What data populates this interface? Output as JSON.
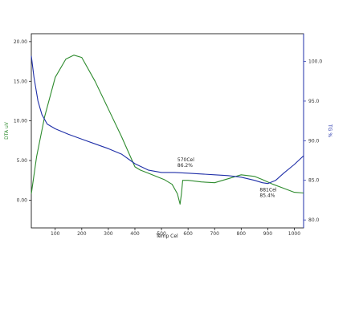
{
  "chart_data": {
    "type": "line",
    "xlabel": "Temp Cel",
    "ylabel_left": "DTA uV",
    "ylabel_right": "TG %",
    "xlim": [
      10,
      1035
    ],
    "ylim_left": [
      -3.5,
      21.0
    ],
    "ylim_right": [
      79.0,
      103.5
    ],
    "x_ticks": [
      100,
      200,
      300,
      400,
      500,
      600,
      700,
      800,
      900,
      1000
    ],
    "y_left_ticks": [
      0.0,
      5.0,
      10.0,
      15.0,
      20.0
    ],
    "y_left_tick_labels": [
      "0.00",
      "5.00",
      "10.00",
      "15.00",
      "20.00"
    ],
    "y_right_ticks": [
      80.0,
      85.0,
      90.0,
      95.0,
      100.0
    ],
    "y_right_tick_labels": [
      "80.0",
      "85.0",
      "90.0",
      "95.0",
      "100.0"
    ],
    "grid": false,
    "series": [
      {
        "axis": "left",
        "color": "#2e8b2e",
        "x": [
          10,
          30,
          60,
          100,
          140,
          170,
          200,
          250,
          300,
          350,
          400,
          420,
          450,
          480,
          510,
          540,
          560,
          570,
          575,
          580,
          600,
          650,
          700,
          750,
          800,
          850,
          880,
          920,
          960,
          1000,
          1035
        ],
        "y": [
          0.8,
          5.5,
          10.5,
          15.5,
          17.8,
          18.3,
          18.0,
          15.0,
          11.5,
          8.0,
          4.2,
          3.8,
          3.4,
          3.0,
          2.6,
          2.0,
          0.8,
          -0.5,
          0.8,
          2.5,
          2.5,
          2.3,
          2.2,
          2.7,
          3.2,
          3.0,
          2.6,
          2.0,
          1.5,
          1.0,
          0.9
        ]
      },
      {
        "axis": "right",
        "color": "#1f2fa8",
        "x": [
          10,
          20,
          35,
          50,
          70,
          100,
          150,
          200,
          250,
          300,
          350,
          400,
          450,
          500,
          550,
          600,
          650,
          700,
          750,
          800,
          850,
          880,
          900,
          930,
          960,
          1000,
          1035
        ],
        "y": [
          100.7,
          98.0,
          95.0,
          93.3,
          92.1,
          91.5,
          90.8,
          90.2,
          89.6,
          89.0,
          88.3,
          87.1,
          86.3,
          86.0,
          86.0,
          85.9,
          85.8,
          85.7,
          85.6,
          85.4,
          85.0,
          84.7,
          84.6,
          85.0,
          85.9,
          87.0,
          88.1
        ]
      }
    ],
    "annotations": [
      {
        "lines": [
          "570Cel",
          "86.2%"
        ],
        "x": 560,
        "y_right": 87.4
      },
      {
        "lines": [
          "881Cel",
          "85.4%"
        ],
        "x": 870,
        "y_right": 83.6
      }
    ]
  }
}
